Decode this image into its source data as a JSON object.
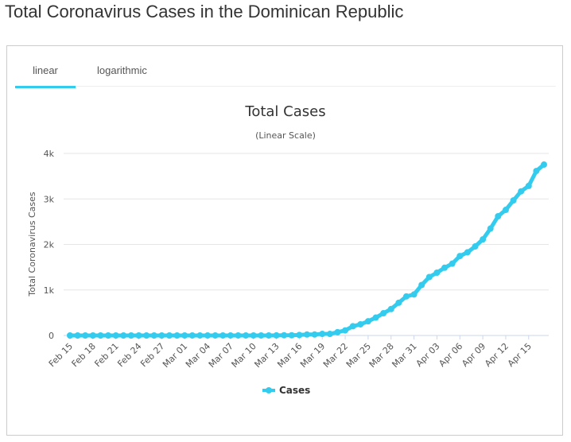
{
  "page_title": "Total Coronavirus Cases in the Dominican Republic",
  "tabs": [
    {
      "label": "linear",
      "active": true
    },
    {
      "label": "logarithmic",
      "active": false
    }
  ],
  "chart_data": {
    "type": "line",
    "title": "Total Cases",
    "subtitle": "(Linear Scale)",
    "ylabel": "Total Coronavirus Cases",
    "xlabel": "",
    "ylim": [
      0,
      4000
    ],
    "yticks": [
      "0",
      "1k",
      "2k",
      "3k",
      "4k"
    ],
    "ytick_values": [
      0,
      1000,
      2000,
      3000,
      4000
    ],
    "grid": true,
    "legend": "bottom",
    "color": "#33ccee",
    "x_tick_labels": [
      "Feb 15",
      "Feb 18",
      "Feb 21",
      "Feb 24",
      "Feb 27",
      "Mar 01",
      "Mar 04",
      "Mar 07",
      "Mar 10",
      "Mar 13",
      "Mar 16",
      "Mar 19",
      "Mar 22",
      "Mar 25",
      "Mar 28",
      "Mar 31",
      "Apr 03",
      "Apr 06",
      "Apr 09",
      "Apr 12",
      "Apr 15"
    ],
    "series": [
      {
        "name": "Cases",
        "x_start": "Feb 15",
        "x_end": "Apr 16",
        "values": [
          0,
          0,
          0,
          0,
          0,
          0,
          0,
          0,
          0,
          0,
          0,
          0,
          0,
          0,
          0,
          1,
          1,
          1,
          1,
          1,
          1,
          1,
          1,
          1,
          1,
          1,
          1,
          2,
          5,
          5,
          11,
          21,
          21,
          34,
          34,
          72,
          112,
          202,
          245,
          312,
          392,
          488,
          581,
          719,
          859,
          901,
          1109,
          1284,
          1380,
          1488,
          1578,
          1745,
          1828,
          1956,
          2111,
          2349,
          2620,
          2759,
          2967,
          3167,
          3286,
          3614,
          3755
        ]
      }
    ]
  }
}
